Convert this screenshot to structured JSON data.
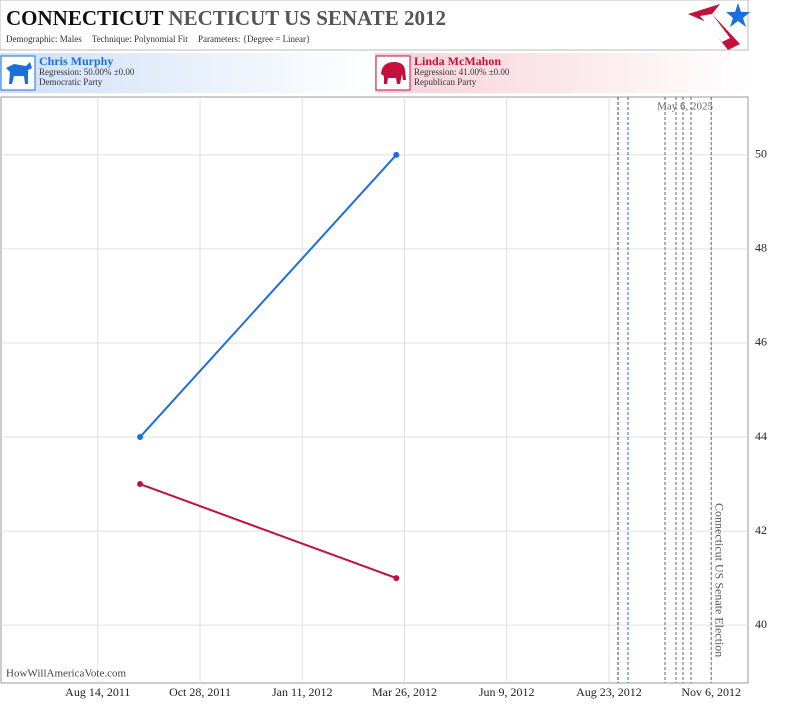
{
  "header": {
    "title_bold": "CONNECTICUT",
    "title_rest": "NECTICUT US SENATE 2012",
    "subtitle": [
      {
        "label": "Demographic:",
        "value": "Males"
      },
      {
        "label": "Technique:",
        "value": "Polynomial Fit"
      },
      {
        "label": "Parameters:",
        "value": "{Degree = Linear}"
      }
    ]
  },
  "footer": {
    "site": "HowWillAmericaVote.com"
  },
  "chart_data": {
    "type": "line",
    "x": [
      "2011-09-14",
      "2012-03-20"
    ],
    "series": [
      {
        "name": "Chris Murphy",
        "regression": "Regression: 50.00% ±0.00",
        "party": "Democratic Party",
        "color": "#1a6fdc",
        "values": [
          44,
          50
        ]
      },
      {
        "name": "Linda McMahon",
        "regression": "Regression: 41.00% ±0.00",
        "party": "Republican Party",
        "color": "#c4103c",
        "values": [
          43,
          41
        ]
      }
    ],
    "xlim": [
      "2011-06-04",
      "2012-12-03"
    ],
    "xticks": [
      {
        "value": "2011-08-14",
        "label": "Aug 14, 2011"
      },
      {
        "value": "2011-10-28",
        "label": "Oct 28, 2011"
      },
      {
        "value": "2012-01-11",
        "label": "Jan 11, 2012"
      },
      {
        "value": "2012-03-26",
        "label": "Mar 26, 2012"
      },
      {
        "value": "2012-06-09",
        "label": "Jun 9, 2012"
      },
      {
        "value": "2012-08-23",
        "label": "Aug 23, 2012"
      },
      {
        "value": "2012-11-06",
        "label": "Nov 6, 2012"
      }
    ],
    "ylim": [
      38.77,
      51.23
    ],
    "yticks": [
      40,
      42,
      44,
      46,
      48,
      50
    ],
    "grid": true,
    "current_date_label": "May 6, 2025",
    "annotations": [
      {
        "x": "2012-11-06",
        "text": "Connecticut US Senate Election"
      }
    ]
  }
}
